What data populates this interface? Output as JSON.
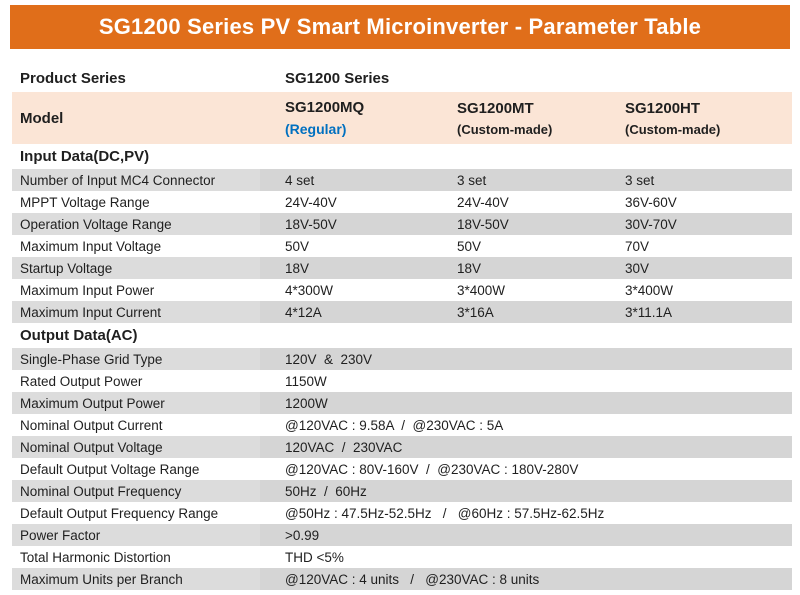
{
  "header": {
    "title": "SG1200 Series PV Smart Microinverter - Parameter Table"
  },
  "product_series": {
    "label": "Product Series",
    "value": "SG1200 Series"
  },
  "model_row": {
    "label": "Model",
    "columns": [
      {
        "name": "SG1200MQ",
        "subtitle": "(Regular)"
      },
      {
        "name": "SG1200MT",
        "subtitle": "(Custom-made)"
      },
      {
        "name": "SG1200HT",
        "subtitle": "(Custom-made)"
      }
    ]
  },
  "sections": [
    {
      "title": "Input Data(DC,PV)",
      "rows": [
        {
          "label": "Number of Input MC4 Connector",
          "values": [
            "4 set",
            "3 set",
            "3 set"
          ]
        },
        {
          "label": "MPPT Voltage Range",
          "values": [
            "24V-40V",
            "24V-40V",
            "36V-60V"
          ]
        },
        {
          "label": "Operation Voltage Range",
          "values": [
            "18V-50V",
            "18V-50V",
            "30V-70V"
          ]
        },
        {
          "label": "Maximum Input Voltage",
          "values": [
            "50V",
            "50V",
            "70V"
          ]
        },
        {
          "label": "Startup Voltage",
          "values": [
            "18V",
            "18V",
            "30V"
          ]
        },
        {
          "label": "Maximum Input Power",
          "values": [
            "4*300W",
            "3*400W",
            "3*400W"
          ]
        },
        {
          "label": "Maximum Input Current",
          "values": [
            "4*12A",
            "3*16A",
            "3*11.1A"
          ]
        }
      ]
    },
    {
      "title": "Output Data(AC)",
      "rows": [
        {
          "label": "Single-Phase Grid Type",
          "values": [
            "120V  &  230V"
          ]
        },
        {
          "label": "Rated Output Power",
          "values": [
            "1150W"
          ]
        },
        {
          "label": "Maximum Output Power",
          "values": [
            "1200W"
          ]
        },
        {
          "label": "Nominal Output Current",
          "values": [
            "@120VAC : 9.58A  /  @230VAC : 5A"
          ]
        },
        {
          "label": "Nominal Output Voltage",
          "values": [
            "120VAC  /  230VAC"
          ]
        },
        {
          "label": "Default Output Voltage Range",
          "values": [
            "@120VAC : 80V-160V  /  @230VAC : 180V-280V"
          ]
        },
        {
          "label": "Nominal Output Frequency",
          "values": [
            "50Hz  /  60Hz"
          ]
        },
        {
          "label": "Default Output Frequency Range",
          "values": [
            "@50Hz : 47.5Hz-52.5Hz   /   @60Hz : 57.5Hz-62.5Hz"
          ]
        },
        {
          "label": "Power Factor",
          "values": [
            ">0.99"
          ]
        },
        {
          "label": "Total Harmonic Distortion",
          "values": [
            "THD <5%"
          ]
        },
        {
          "label": "Maximum Units per Branch",
          "values": [
            "@120VAC : 4 units   /   @230VAC : 8 units"
          ]
        }
      ]
    }
  ],
  "colors": {
    "header_bg": "#E06E1A",
    "header_text": "#FFFFFF",
    "model_row_bg": "#FBE5D6",
    "stripe_label": "#DCDCDC",
    "stripe_value": "#D5D5D5",
    "accent_blue": "#0070C0",
    "text": "#1F1F1F"
  }
}
